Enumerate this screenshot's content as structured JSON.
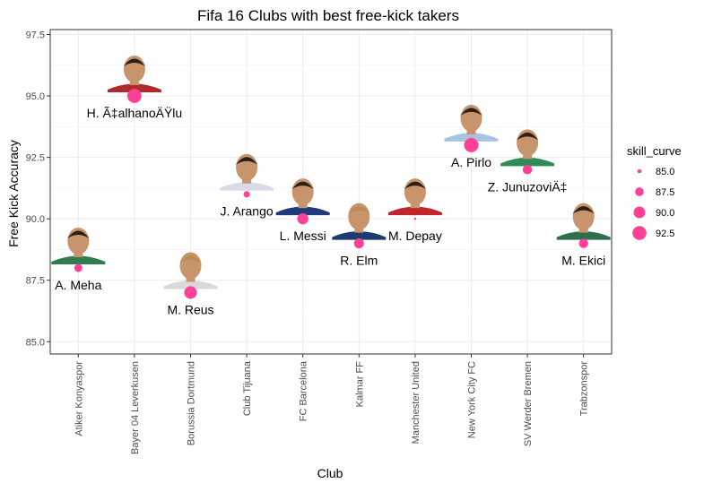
{
  "chart_data": {
    "type": "scatter",
    "title": "Fifa 16 Clubs with best free-kick takers",
    "xlabel": "Club",
    "ylabel": "Free Kick Accuracy",
    "categories": [
      "Atiker Konyaspor",
      "Bayer 04 Leverkusen",
      "Borussia Dortmund",
      "Club Tijuana",
      "FC Barcelona",
      "Kalmar FF",
      "Manchester United",
      "New York City FC",
      "SV Werder Bremen",
      "Trabzonspor"
    ],
    "ylim": [
      84.5,
      97.7
    ],
    "yticks": [
      85.0,
      87.5,
      90.0,
      92.5,
      95.0,
      97.5
    ],
    "ytick_labels": [
      "85.0",
      "87.5",
      "90.0",
      "92.5",
      "95.0",
      "97.5"
    ],
    "grid": true,
    "legend_placement": "right",
    "size_legend": {
      "title": "skill_curve",
      "values": [
        85.0,
        87.5,
        90.0,
        92.5
      ],
      "labels": [
        "85.0",
        "87.5",
        "90.0",
        "92.5"
      ]
    },
    "point_color": "#ff4196",
    "points": [
      {
        "club": "Atiker Konyaspor",
        "player": "A. Meha",
        "y": 88.0,
        "skill_curve": 87.0
      },
      {
        "club": "Bayer 04 Leverkusen",
        "player": "H. Ã‡alhanoÄŸlu",
        "y": 95.0,
        "skill_curve": 92.8
      },
      {
        "club": "Borussia Dortmund",
        "player": "M. Reus",
        "y": 87.0,
        "skill_curve": 91.0
      },
      {
        "club": "Club Tijuana",
        "player": "J. Arango",
        "y": 91.0,
        "skill_curve": 86.0
      },
      {
        "club": "FC Barcelona",
        "player": "L. Messi",
        "y": 90.0,
        "skill_curve": 89.5
      },
      {
        "club": "Kalmar FF",
        "player": "R. Elm",
        "y": 89.0,
        "skill_curve": 88.5
      },
      {
        "club": "Manchester United",
        "player": "M. Depay",
        "y": 90.0,
        "skill_curve": 84.5
      },
      {
        "club": "New York City FC",
        "player": "A. Pirlo",
        "y": 93.0,
        "skill_curve": 93.0
      },
      {
        "club": "SV Werder Bremen",
        "player": "Z. JunuzoviÄ‡",
        "y": 92.0,
        "skill_curve": 88.0
      },
      {
        "club": "Trabzonspor",
        "player": "M. Ekici",
        "y": 89.0,
        "skill_curve": 88.0
      }
    ]
  },
  "photo_colors": {
    "skin": "#c8946c",
    "hair": "#2b2018",
    "blonde_hair": "#b98e52",
    "jersey": [
      "#2f7d4a",
      "#b02a2a",
      "#d9d9d9",
      "#d8dce8",
      "#1f3a78",
      "#1d3b6f",
      "#c0272d",
      "#a8c4e0",
      "#2e8a57",
      "#2f6f4f"
    ]
  }
}
